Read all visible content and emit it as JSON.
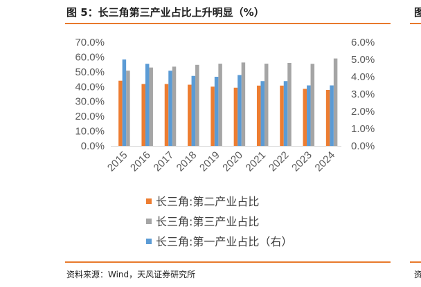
{
  "figure": {
    "title": "图 5：长三角第三产业占比上升明显（%）",
    "source": "资料来源：Wind，天风证券研究所",
    "edge_title_glyph": "图",
    "edge_source_glyph": "资",
    "accent_color": "#E8792B"
  },
  "chart_data": {
    "type": "bar",
    "categories": [
      "2015",
      "2016",
      "2017",
      "2018",
      "2019",
      "2020",
      "2021",
      "2022",
      "2023",
      "2024"
    ],
    "left_axis": {
      "min": 0,
      "max": 70,
      "step": 10,
      "tick_labels": [
        "0.0%",
        "10.0%",
        "20.0%",
        "30.0%",
        "40.0%",
        "50.0%",
        "60.0%",
        "70.0%"
      ]
    },
    "right_axis": {
      "min": 0,
      "max": 6,
      "step": 1,
      "tick_labels": [
        "0.0%",
        "1.0%",
        "2.0%",
        "3.0%",
        "4.0%",
        "5.0%",
        "6.0%"
      ]
    },
    "grid": false,
    "legend_position": "bottom",
    "series": [
      {
        "name": "长三角:第二产业占比",
        "axis": "left",
        "color": "#ED7D31",
        "values": [
          44.0,
          41.8,
          41.8,
          41.3,
          40.0,
          39.3,
          40.7,
          40.7,
          38.5,
          37.8
        ]
      },
      {
        "name": "长三角:第三产业占比",
        "axis": "left",
        "color": "#A5A5A5",
        "values": [
          50.8,
          52.9,
          53.5,
          54.7,
          55.5,
          56.3,
          55.5,
          56.0,
          55.4,
          59.0
        ]
      },
      {
        "name": "长三角:第一产业占比（右）",
        "axis": "right",
        "color": "#5B9BD5",
        "values": [
          5.0,
          4.75,
          4.35,
          4.05,
          4.0,
          4.1,
          3.75,
          3.75,
          3.5,
          3.5
        ]
      }
    ]
  }
}
